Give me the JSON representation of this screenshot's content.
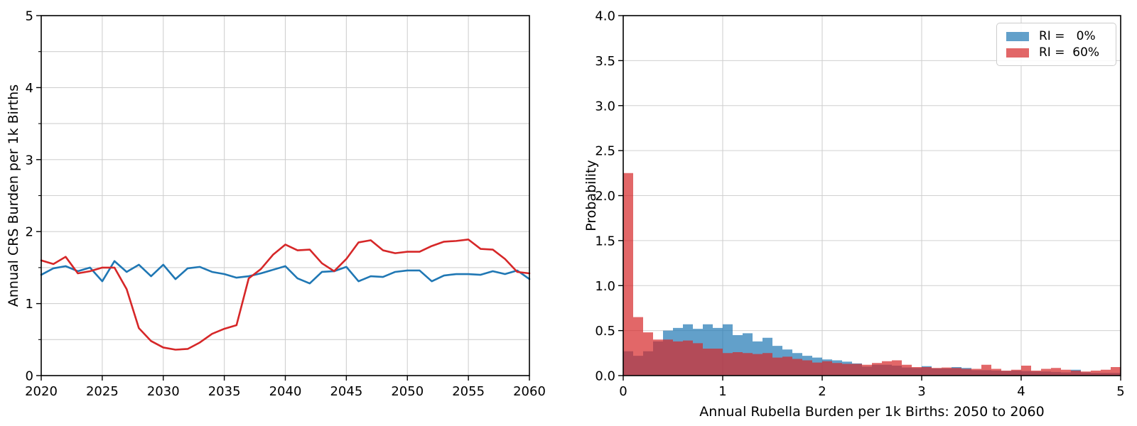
{
  "figure": {
    "background": "#ffffff",
    "grid_color": "#d0d0d0",
    "spine_color": "#000000",
    "text_color": "#000000"
  },
  "chart_data": [
    {
      "type": "line",
      "title": "",
      "xlabel": "",
      "ylabel": "Annual CRS Burden per 1k Births",
      "xlim": [
        2020,
        2060
      ],
      "ylim": [
        0,
        5
      ],
      "xticks": [
        2020,
        2025,
        2030,
        2035,
        2040,
        2045,
        2050,
        2055,
        2060
      ],
      "yticks": [
        0,
        1,
        2,
        3,
        4,
        5
      ],
      "yticks_minor": [
        0.5,
        1.5,
        2.5,
        3.5,
        4.5
      ],
      "grid": "on",
      "x": [
        2020,
        2021,
        2022,
        2023,
        2024,
        2025,
        2026,
        2027,
        2028,
        2029,
        2030,
        2031,
        2032,
        2033,
        2034,
        2035,
        2036,
        2037,
        2038,
        2039,
        2040,
        2041,
        2042,
        2043,
        2044,
        2045,
        2046,
        2047,
        2048,
        2049,
        2050,
        2051,
        2052,
        2053,
        2054,
        2055,
        2056,
        2057,
        2058,
        2059,
        2060
      ],
      "series": [
        {
          "name": "RI = 0%",
          "color": "#1f77b4",
          "values": [
            1.4,
            1.49,
            1.52,
            1.45,
            1.5,
            1.31,
            1.59,
            1.44,
            1.54,
            1.38,
            1.54,
            1.34,
            1.49,
            1.51,
            1.44,
            1.41,
            1.36,
            1.38,
            1.42,
            1.47,
            1.52,
            1.35,
            1.28,
            1.44,
            1.45,
            1.51,
            1.31,
            1.38,
            1.37,
            1.44,
            1.46,
            1.46,
            1.31,
            1.39,
            1.41,
            1.41,
            1.4,
            1.45,
            1.41,
            1.46,
            1.34
          ]
        },
        {
          "name": "RI = 60%",
          "color": "#d62728",
          "values": [
            1.6,
            1.55,
            1.65,
            1.42,
            1.45,
            1.5,
            1.5,
            1.2,
            0.66,
            0.48,
            0.39,
            0.36,
            0.37,
            0.46,
            0.58,
            0.65,
            0.7,
            1.35,
            1.48,
            1.68,
            1.82,
            1.74,
            1.75,
            1.56,
            1.45,
            1.62,
            1.85,
            1.88,
            1.74,
            1.7,
            1.72,
            1.72,
            1.8,
            1.86,
            1.87,
            1.89,
            1.76,
            1.75,
            1.62,
            1.44,
            1.42
          ]
        }
      ]
    },
    {
      "type": "histogram",
      "title": "",
      "xlabel": "Annual Rubella Burden per 1k Births: 2050 to 2060",
      "ylabel": "Probability",
      "xlim": [
        0,
        5
      ],
      "ylim": [
        0,
        4
      ],
      "xticks": [
        0,
        1,
        2,
        3,
        4,
        5
      ],
      "yticks": [
        0.0,
        0.5,
        1.0,
        1.5,
        2.0,
        2.5,
        3.0,
        3.5,
        4.0
      ],
      "ytick_labels": [
        "0.0",
        "0.5",
        "1.0",
        "1.5",
        "2.0",
        "2.5",
        "3.0",
        "3.5",
        "4.0"
      ],
      "grid": "on",
      "bin_start": 0,
      "bin_width": 0.1,
      "series": [
        {
          "name": "RI =   0%",
          "color": "#1f77b4",
          "opacity": 0.7,
          "values": [
            0.27,
            0.22,
            0.27,
            0.38,
            0.5,
            0.53,
            0.57,
            0.52,
            0.57,
            0.53,
            0.57,
            0.45,
            0.47,
            0.38,
            0.42,
            0.33,
            0.29,
            0.25,
            0.22,
            0.2,
            0.18,
            0.17,
            0.155,
            0.135,
            0.1,
            0.12,
            0.12,
            0.11,
            0.09,
            0.085,
            0.105,
            0.08,
            0.08,
            0.095,
            0.085,
            0.06,
            0.06,
            0.055,
            0.05,
            0.055,
            0.05,
            0.045,
            0.045,
            0.04,
            0.035,
            0.065,
            0.035,
            0.03,
            0.03,
            0.03
          ]
        },
        {
          "name": "RI =  60%",
          "color": "#d62728",
          "opacity": 0.7,
          "values": [
            2.25,
            0.65,
            0.48,
            0.4,
            0.4,
            0.38,
            0.39,
            0.36,
            0.3,
            0.3,
            0.25,
            0.26,
            0.25,
            0.24,
            0.25,
            0.2,
            0.21,
            0.185,
            0.17,
            0.145,
            0.16,
            0.14,
            0.13,
            0.13,
            0.12,
            0.14,
            0.16,
            0.17,
            0.12,
            0.095,
            0.095,
            0.085,
            0.09,
            0.085,
            0.075,
            0.075,
            0.12,
            0.075,
            0.055,
            0.065,
            0.11,
            0.055,
            0.075,
            0.085,
            0.065,
            0.055,
            0.045,
            0.055,
            0.065,
            0.095
          ]
        }
      ],
      "legend": {
        "position": "upper right",
        "labels": [
          "RI =   0%",
          "RI =  60%"
        ]
      }
    }
  ]
}
